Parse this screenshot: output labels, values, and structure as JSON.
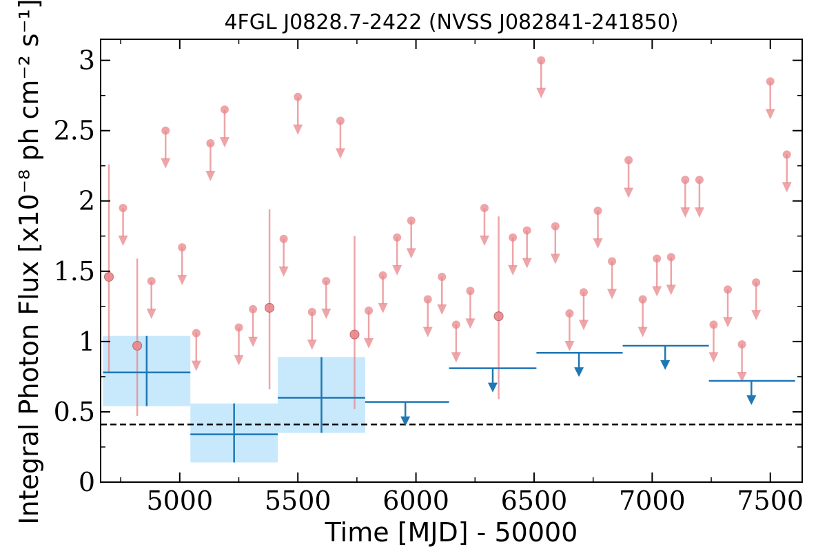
{
  "chart_data": {
    "type": "scatter",
    "title": "4FGL J0828.7-2422 (NVSS J082841-241850)",
    "xlabel": "Time [MJD] - 50000",
    "ylabel": "Integral Photon Flux [x10⁻⁸ ph cm⁻² s⁻¹]",
    "xlim": [
      4665,
      7635
    ],
    "ylim": [
      0,
      3.15
    ],
    "x_ticks": [
      5000,
      5500,
      6000,
      6500,
      7000,
      7500
    ],
    "x_tick_labels": [
      "5000",
      "5500",
      "6000",
      "6500",
      "7000",
      "7500"
    ],
    "y_ticks": [
      0,
      0.5,
      1,
      1.5,
      2,
      2.5,
      3
    ],
    "y_tick_labels": [
      "0",
      "0.5",
      "1",
      "1.5",
      "2",
      "2.5",
      "3"
    ],
    "reference_line": {
      "y": 0.41,
      "style": "dashed",
      "color": "#000000"
    },
    "colors": {
      "fine_bins": "#e8878b",
      "coarse_bins": "#1f77b4",
      "coarse_band": "#c8e9fb"
    },
    "series": [
      {
        "bin": "short",
        "detections": [
          {
            "x": 4700,
            "y": 1.46,
            "ylo": 0.78,
            "yhi": 2.26
          },
          {
            "x": 4820,
            "y": 0.97,
            "ylo": 0.47,
            "yhi": 1.59
          },
          {
            "x": 5380,
            "y": 1.24,
            "ylo": 0.66,
            "yhi": 1.94
          },
          {
            "x": 5740,
            "y": 1.05,
            "ylo": 0.52,
            "yhi": 1.75
          },
          {
            "x": 6350,
            "y": 1.18,
            "ylo": 0.59,
            "yhi": 1.89
          }
        ],
        "upper_limits": [
          {
            "x": 4760,
            "y": 1.95
          },
          {
            "x": 4880,
            "y": 1.43
          },
          {
            "x": 4940,
            "y": 2.5
          },
          {
            "x": 5010,
            "y": 1.67
          },
          {
            "x": 5070,
            "y": 1.06
          },
          {
            "x": 5130,
            "y": 2.41
          },
          {
            "x": 5190,
            "y": 2.65
          },
          {
            "x": 5250,
            "y": 1.1
          },
          {
            "x": 5310,
            "y": 1.23
          },
          {
            "x": 5440,
            "y": 1.73
          },
          {
            "x": 5500,
            "y": 2.74
          },
          {
            "x": 5560,
            "y": 1.21
          },
          {
            "x": 5620,
            "y": 1.43
          },
          {
            "x": 5680,
            "y": 2.57
          },
          {
            "x": 5800,
            "y": 1.22
          },
          {
            "x": 5860,
            "y": 1.47
          },
          {
            "x": 5920,
            "y": 1.74
          },
          {
            "x": 5980,
            "y": 1.86
          },
          {
            "x": 6050,
            "y": 1.3
          },
          {
            "x": 6110,
            "y": 1.46
          },
          {
            "x": 6170,
            "y": 1.12
          },
          {
            "x": 6230,
            "y": 1.36
          },
          {
            "x": 6290,
            "y": 1.95
          },
          {
            "x": 6410,
            "y": 1.74
          },
          {
            "x": 6470,
            "y": 1.79
          },
          {
            "x": 6530,
            "y": 3.0
          },
          {
            "x": 6590,
            "y": 1.82
          },
          {
            "x": 6650,
            "y": 1.2
          },
          {
            "x": 6710,
            "y": 1.35
          },
          {
            "x": 6770,
            "y": 1.93
          },
          {
            "x": 6830,
            "y": 1.57
          },
          {
            "x": 6900,
            "y": 2.29
          },
          {
            "x": 6960,
            "y": 1.3
          },
          {
            "x": 7020,
            "y": 1.59
          },
          {
            "x": 7080,
            "y": 1.6
          },
          {
            "x": 7140,
            "y": 2.15
          },
          {
            "x": 7200,
            "y": 2.15
          },
          {
            "x": 7260,
            "y": 1.12
          },
          {
            "x": 7320,
            "y": 1.37
          },
          {
            "x": 7380,
            "y": 0.98
          },
          {
            "x": 7440,
            "y": 1.42
          },
          {
            "x": 7500,
            "y": 2.85
          },
          {
            "x": 7570,
            "y": 2.33
          }
        ]
      },
      {
        "bin": "long",
        "detections": [
          {
            "x": 4860,
            "xlo": 4675,
            "xhi": 5045,
            "y": 0.78,
            "ylo": 0.54,
            "yhi": 1.04
          },
          {
            "x": 5230,
            "xlo": 5045,
            "xhi": 5415,
            "y": 0.34,
            "ylo": 0.14,
            "yhi": 0.56
          },
          {
            "x": 5600,
            "xlo": 5415,
            "xhi": 5785,
            "y": 0.6,
            "ylo": 0.35,
            "yhi": 0.89
          }
        ],
        "upper_limits": [
          {
            "x": 5955,
            "xlo": 5785,
            "xhi": 6140,
            "y": 0.57
          },
          {
            "x": 6325,
            "xlo": 6140,
            "xhi": 6510,
            "y": 0.81
          },
          {
            "x": 6690,
            "xlo": 6510,
            "xhi": 6875,
            "y": 0.92
          },
          {
            "x": 7055,
            "xlo": 6875,
            "xhi": 7240,
            "y": 0.97
          },
          {
            "x": 7420,
            "xlo": 7240,
            "xhi": 7605,
            "y": 0.72
          }
        ]
      }
    ]
  }
}
